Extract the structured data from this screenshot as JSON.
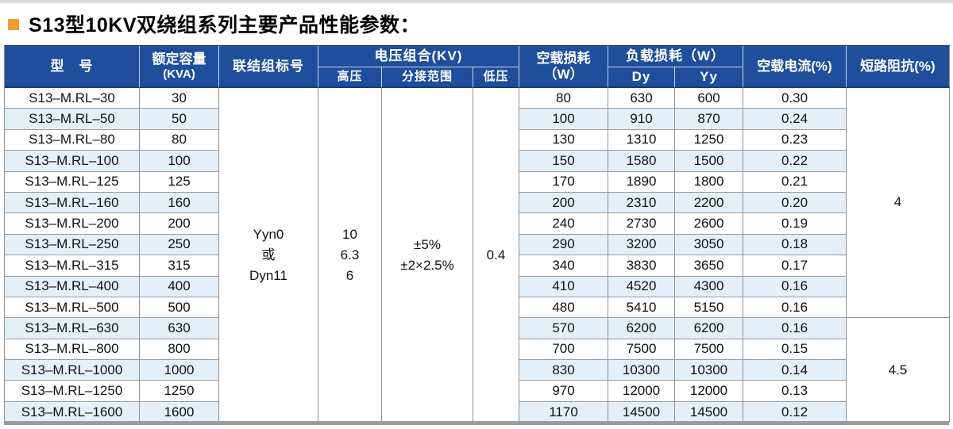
{
  "page": {
    "title": "S13型10KV双绕组系列主要产品性能参数：",
    "bullet_icon": "orange-square"
  },
  "colors": {
    "header_bg": "#1e4e9c",
    "header_text": "#ffffff",
    "stripe": "#e3f0fa",
    "grid_line": "#909090",
    "bullet_orange": "#f49b32",
    "bottom_bar": "#9c9c9c"
  },
  "table": {
    "headers": {
      "model": "型　号",
      "capacity_line1": "额定容量",
      "capacity_line2": "(KVA)",
      "connection": "联结组标号",
      "voltage_group": "电压组合(KV)",
      "hv": "高压",
      "tap_range": "分接范围",
      "lv": "低压",
      "no_load_loss_line1": "空载损耗",
      "no_load_loss_line2": "（W）",
      "load_loss": "负载损耗（W）",
      "dy": "Dy",
      "yy": "Yy",
      "no_load_current": "空载电流(%)",
      "impedance": "短路阻抗(%)"
    },
    "merged": {
      "connection_lines": [
        "Yyn0",
        "或",
        "Dyn11"
      ],
      "hv_lines": [
        "10",
        "6.3",
        "6"
      ],
      "tap_lines": [
        "±5%",
        "±2×2.5%"
      ],
      "lv": "0.4"
    },
    "impedance_groups": [
      {
        "value": "4",
        "row_span": 11
      },
      {
        "value": "4.5",
        "row_span": 5
      }
    ],
    "rows": [
      {
        "model": "S13–M.RL–30",
        "capacity": "30",
        "no_load_loss": "80",
        "load_loss_dy": "630",
        "load_loss_yy": "600",
        "no_load_current": "0.30"
      },
      {
        "model": "S13–M.RL–50",
        "capacity": "50",
        "no_load_loss": "100",
        "load_loss_dy": "910",
        "load_loss_yy": "870",
        "no_load_current": "0.24"
      },
      {
        "model": "S13–M.RL–80",
        "capacity": "80",
        "no_load_loss": "130",
        "load_loss_dy": "1310",
        "load_loss_yy": "1250",
        "no_load_current": "0.23"
      },
      {
        "model": "S13–M.RL–100",
        "capacity": "100",
        "no_load_loss": "150",
        "load_loss_dy": "1580",
        "load_loss_yy": "1500",
        "no_load_current": "0.22"
      },
      {
        "model": "S13–M.RL–125",
        "capacity": "125",
        "no_load_loss": "170",
        "load_loss_dy": "1890",
        "load_loss_yy": "1800",
        "no_load_current": "0.21"
      },
      {
        "model": "S13–M.RL–160",
        "capacity": "160",
        "no_load_loss": "200",
        "load_loss_dy": "2310",
        "load_loss_yy": "2200",
        "no_load_current": "0.20"
      },
      {
        "model": "S13–M.RL–200",
        "capacity": "200",
        "no_load_loss": "240",
        "load_loss_dy": "2730",
        "load_loss_yy": "2600",
        "no_load_current": "0.19"
      },
      {
        "model": "S13–M.RL–250",
        "capacity": "250",
        "no_load_loss": "290",
        "load_loss_dy": "3200",
        "load_loss_yy": "3050",
        "no_load_current": "0.18"
      },
      {
        "model": "S13–M.RL–315",
        "capacity": "315",
        "no_load_loss": "340",
        "load_loss_dy": "3830",
        "load_loss_yy": "3650",
        "no_load_current": "0.17"
      },
      {
        "model": "S13–M.RL–400",
        "capacity": "400",
        "no_load_loss": "410",
        "load_loss_dy": "4520",
        "load_loss_yy": "4300",
        "no_load_current": "0.16"
      },
      {
        "model": "S13–M.RL–500",
        "capacity": "500",
        "no_load_loss": "480",
        "load_loss_dy": "5410",
        "load_loss_yy": "5150",
        "no_load_current": "0.16"
      },
      {
        "model": "S13–M.RL–630",
        "capacity": "630",
        "no_load_loss": "570",
        "load_loss_dy": "6200",
        "load_loss_yy": "6200",
        "no_load_current": "0.16"
      },
      {
        "model": "S13–M.RL–800",
        "capacity": "800",
        "no_load_loss": "700",
        "load_loss_dy": "7500",
        "load_loss_yy": "7500",
        "no_load_current": "0.15"
      },
      {
        "model": "S13–M.RL–1000",
        "capacity": "1000",
        "no_load_loss": "830",
        "load_loss_dy": "10300",
        "load_loss_yy": "10300",
        "no_load_current": "0.14"
      },
      {
        "model": "S13–M.RL–1250",
        "capacity": "1250",
        "no_load_loss": "970",
        "load_loss_dy": "12000",
        "load_loss_yy": "12000",
        "no_load_current": "0.13"
      },
      {
        "model": "S13–M.RL–1600",
        "capacity": "1600",
        "no_load_loss": "1170",
        "load_loss_dy": "14500",
        "load_loss_yy": "14500",
        "no_load_current": "0.12"
      }
    ]
  }
}
